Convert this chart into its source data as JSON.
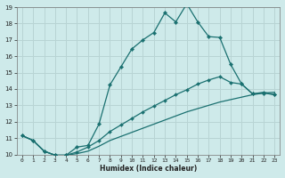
{
  "xlabel": "Humidex (Indice chaleur)",
  "background_color": "#ceeaea",
  "grid_color": "#b8d4d4",
  "line_color": "#1a7070",
  "xlim": [
    -0.5,
    23.5
  ],
  "ylim": [
    10,
    19
  ],
  "xticks": [
    0,
    1,
    2,
    3,
    4,
    5,
    6,
    7,
    8,
    9,
    10,
    11,
    12,
    13,
    14,
    15,
    16,
    17,
    18,
    19,
    20,
    21,
    22,
    23
  ],
  "yticks": [
    10,
    11,
    12,
    13,
    14,
    15,
    16,
    17,
    18,
    19
  ],
  "curve1_x": [
    0,
    1,
    2,
    3,
    4,
    5,
    6,
    7,
    8,
    9,
    10,
    11,
    12,
    13,
    14,
    15,
    16,
    17,
    18,
    19,
    20,
    21,
    22,
    23
  ],
  "curve1_y": [
    11.15,
    10.85,
    10.2,
    9.95,
    9.95,
    10.45,
    10.55,
    11.85,
    14.25,
    15.35,
    16.45,
    17.0,
    17.45,
    18.65,
    18.1,
    19.2,
    18.1,
    17.2,
    17.15,
    15.5,
    14.3,
    13.7,
    13.75,
    13.65
  ],
  "curve2_x": [
    0,
    1,
    2,
    3,
    4,
    5,
    6,
    7,
    8,
    9,
    10,
    11,
    12,
    13,
    14,
    15,
    16,
    17,
    18,
    19,
    20,
    21,
    22,
    23
  ],
  "curve2_y": [
    11.15,
    10.85,
    10.2,
    9.95,
    9.95,
    10.15,
    10.45,
    10.85,
    11.4,
    11.8,
    12.2,
    12.6,
    12.95,
    13.3,
    13.65,
    13.95,
    14.3,
    14.55,
    14.75,
    14.4,
    14.3,
    13.7,
    13.8,
    13.65
  ],
  "curve3_x": [
    0,
    1,
    2,
    3,
    4,
    5,
    6,
    7,
    8,
    9,
    10,
    11,
    12,
    13,
    14,
    15,
    16,
    17,
    18,
    19,
    20,
    21,
    22,
    23
  ],
  "curve3_y": [
    11.15,
    10.85,
    10.2,
    9.95,
    9.95,
    10.05,
    10.2,
    10.5,
    10.85,
    11.1,
    11.35,
    11.6,
    11.85,
    12.1,
    12.35,
    12.6,
    12.8,
    13.0,
    13.2,
    13.35,
    13.5,
    13.65,
    13.75,
    13.8
  ]
}
